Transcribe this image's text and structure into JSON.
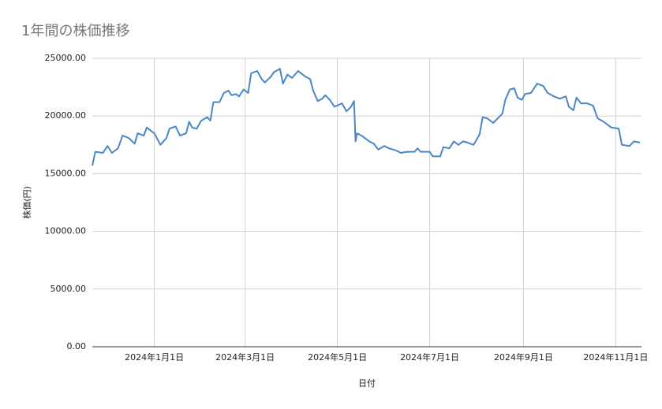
{
  "chart_data": {
    "type": "line",
    "title": "1年間の株価推移",
    "x_label": "日付",
    "y_label": "株価(円)",
    "x": [
      "2023-11-21",
      "2023-11-23",
      "2023-11-28",
      "2023-12-01",
      "2023-12-04",
      "2023-12-08",
      "2023-12-11",
      "2023-12-15",
      "2023-12-19",
      "2023-12-21",
      "2023-12-25",
      "2023-12-27",
      "2024-01-01",
      "2024-01-05",
      "2024-01-09",
      "2024-01-11",
      "2024-01-15",
      "2024-01-18",
      "2024-01-22",
      "2024-01-24",
      "2024-01-26",
      "2024-01-29",
      "2024-02-01",
      "2024-02-05",
      "2024-02-07",
      "2024-02-09",
      "2024-02-13",
      "2024-02-16",
      "2024-02-19",
      "2024-02-21",
      "2024-02-24",
      "2024-02-26",
      "2024-02-29",
      "2024-03-03",
      "2024-03-05",
      "2024-03-09",
      "2024-03-12",
      "2024-03-14",
      "2024-03-18",
      "2024-03-20",
      "2024-03-24",
      "2024-03-26",
      "2024-03-29",
      "2024-04-01",
      "2024-04-05",
      "2024-04-10",
      "2024-04-13",
      "2024-04-15",
      "2024-04-18",
      "2024-04-21",
      "2024-04-23",
      "2024-04-26",
      "2024-04-29",
      "2024-05-04",
      "2024-05-07",
      "2024-05-10",
      "2024-05-12",
      "2024-05-13",
      "2024-05-14",
      "2024-05-17",
      "2024-05-22",
      "2024-05-25",
      "2024-05-28",
      "2024-06-01",
      "2024-06-04",
      "2024-06-09",
      "2024-06-12",
      "2024-06-16",
      "2024-06-21",
      "2024-06-23",
      "2024-06-25",
      "2024-07-01",
      "2024-07-03",
      "2024-07-08",
      "2024-07-10",
      "2024-07-14",
      "2024-07-17",
      "2024-07-20",
      "2024-07-23",
      "2024-07-26",
      "2024-07-30",
      "2024-08-03",
      "2024-08-05",
      "2024-08-08",
      "2024-08-12",
      "2024-08-18",
      "2024-08-20",
      "2024-08-23",
      "2024-08-26",
      "2024-08-28",
      "2024-08-31",
      "2024-09-02",
      "2024-09-06",
      "2024-09-10",
      "2024-09-14",
      "2024-09-17",
      "2024-09-21",
      "2024-09-25",
      "2024-09-29",
      "2024-10-01",
      "2024-10-04",
      "2024-10-06",
      "2024-10-09",
      "2024-10-13",
      "2024-10-17",
      "2024-10-20",
      "2024-10-24",
      "2024-10-29",
      "2024-11-03",
      "2024-11-05",
      "2024-11-10",
      "2024-11-13",
      "2024-11-17"
    ],
    "series": [
      {
        "name": "株価(円)",
        "color": "#4a86c8",
        "values": [
          15700,
          16900,
          16800,
          17400,
          16800,
          17200,
          18300,
          18100,
          17600,
          18500,
          18300,
          19000,
          18500,
          17500,
          18100,
          18900,
          19100,
          18300,
          18500,
          19500,
          19000,
          18900,
          19600,
          19900,
          19600,
          21200,
          21200,
          22000,
          22200,
          21800,
          21900,
          21700,
          22300,
          22000,
          23700,
          23900,
          23200,
          22900,
          23400,
          23800,
          24100,
          22800,
          23600,
          23300,
          23900,
          23400,
          23200,
          22200,
          21300,
          21500,
          21800,
          21400,
          20800,
          21100,
          20400,
          20800,
          21300,
          17800,
          18500,
          18300,
          17800,
          17600,
          17100,
          17400,
          17200,
          17000,
          16800,
          16900,
          16900,
          17200,
          16900,
          16900,
          16500,
          16500,
          17300,
          17200,
          17800,
          17500,
          17800,
          17700,
          17500,
          18400,
          19900,
          19800,
          19400,
          20200,
          21400,
          22300,
          22400,
          21600,
          21400,
          21900,
          22000,
          22800,
          22600,
          22000,
          21700,
          21500,
          21700,
          20800,
          20500,
          21600,
          21100,
          21100,
          20900,
          19800,
          19500,
          19000,
          18900,
          17500,
          17400,
          17800,
          17700
        ]
      }
    ],
    "xlim": [
      "2023-11-21",
      "2024-11-18"
    ],
    "xticks": [
      {
        "value": "2024-01-01",
        "label": "2024年1月1日"
      },
      {
        "value": "2024-03-01",
        "label": "2024年3月1日"
      },
      {
        "value": "2024-05-01",
        "label": "2024年5月1日"
      },
      {
        "value": "2024-07-01",
        "label": "2024年7月1日"
      },
      {
        "value": "2024-09-01",
        "label": "2024年9月1日"
      },
      {
        "value": "2024-11-01",
        "label": "2024年11月1日"
      }
    ],
    "ylim": [
      0,
      25000
    ],
    "yticks": [
      {
        "value": 0,
        "label": "0.00"
      },
      {
        "value": 5000,
        "label": "5000.00"
      },
      {
        "value": 10000,
        "label": "10000.00"
      },
      {
        "value": 15000,
        "label": "15000.00"
      },
      {
        "value": 20000,
        "label": "20000.00"
      },
      {
        "value": 25000,
        "label": "25000.00"
      }
    ],
    "grid": true
  }
}
